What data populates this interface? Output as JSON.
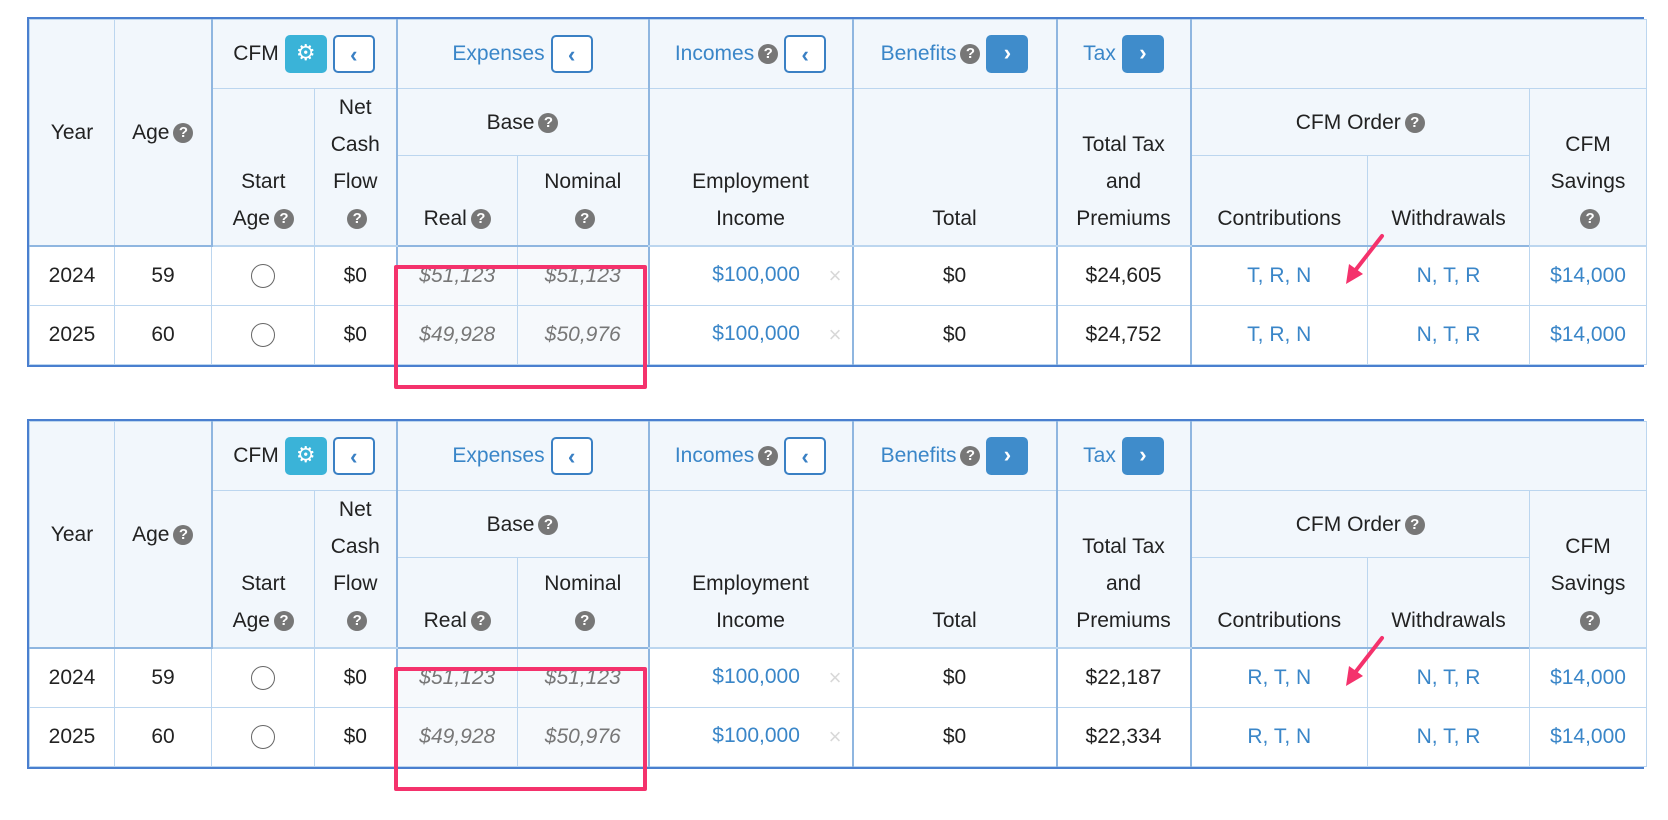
{
  "header": {
    "year": "Year",
    "age": "Age",
    "cfm": "CFM",
    "expenses": "Expenses",
    "incomes": "Incomes",
    "benefits": "Benefits",
    "tax": "Tax",
    "start_age": [
      "Start",
      "Age"
    ],
    "net_cash_flow": [
      "Net",
      "Cash",
      "Flow"
    ],
    "base": "Base",
    "real": "Real",
    "nominal": "Nominal",
    "employment_income": [
      "Employment",
      "Income"
    ],
    "total": "Total",
    "total_tax": [
      "Total Tax",
      "and",
      "Premiums"
    ],
    "cfm_order": "CFM Order",
    "contributions": "Contributions",
    "withdrawals": "Withdrawals",
    "cfm_savings": [
      "CFM",
      "Savings"
    ],
    "help_glyph": "?",
    "left_chevron": "‹",
    "right_chevron": "›",
    "gear_glyph": "⚙"
  },
  "remove_glyph": "×",
  "colors": {
    "accent": "#3a86c8",
    "highlight": "#f4326c",
    "gear_button": "#3ab3d8"
  },
  "tables": [
    {
      "rows": [
        {
          "year": "2024",
          "age": "59",
          "net_cash_flow": "$0",
          "real": "$51,123",
          "nominal": "$51,123",
          "employment_income": "$100,000",
          "benefits_total": "$0",
          "total_tax": "$24,605",
          "contributions": "T, R, N",
          "withdrawals": "N, T, R",
          "cfm_savings": "$14,000"
        },
        {
          "year": "2025",
          "age": "60",
          "net_cash_flow": "$0",
          "real": "$49,928",
          "nominal": "$50,976",
          "employment_income": "$100,000",
          "benefits_total": "$0",
          "total_tax": "$24,752",
          "contributions": "T, R, N",
          "withdrawals": "N, T, R",
          "cfm_savings": "$14,000"
        }
      ]
    },
    {
      "rows": [
        {
          "year": "2024",
          "age": "59",
          "net_cash_flow": "$0",
          "real": "$51,123",
          "nominal": "$51,123",
          "employment_income": "$100,000",
          "benefits_total": "$0",
          "total_tax": "$22,187",
          "contributions": "R, T, N",
          "withdrawals": "N, T, R",
          "cfm_savings": "$14,000"
        },
        {
          "year": "2025",
          "age": "60",
          "net_cash_flow": "$0",
          "real": "$49,928",
          "nominal": "$50,976",
          "employment_income": "$100,000",
          "benefits_total": "$0",
          "total_tax": "$22,334",
          "contributions": "R, T, N",
          "withdrawals": "N, T, R",
          "cfm_savings": "$14,000"
        }
      ]
    }
  ]
}
